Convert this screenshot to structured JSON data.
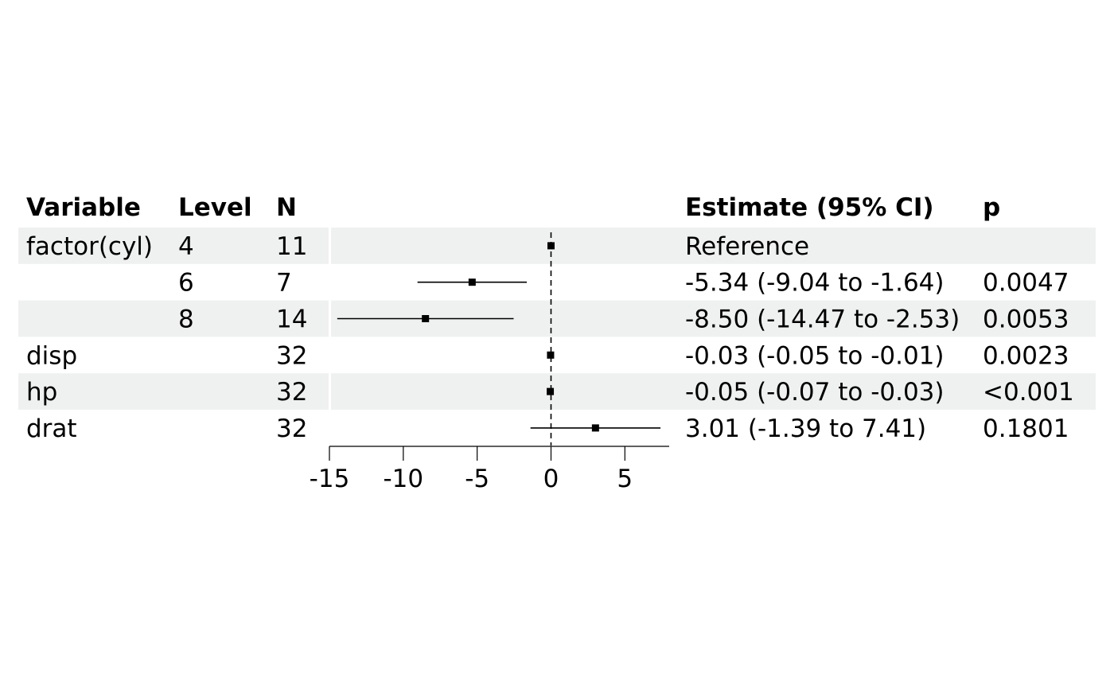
{
  "chart_data": {
    "type": "forest",
    "headers": {
      "variable": "Variable",
      "level": "Level",
      "n": "N",
      "estimate": "Estimate (95% CI)",
      "p": "p"
    },
    "rows": [
      {
        "variable": "factor(cyl)",
        "level": "4",
        "n": "11",
        "estimate_text": "Reference",
        "p_text": "",
        "estimate": 0,
        "lower": null,
        "upper": null
      },
      {
        "variable": "",
        "level": "6",
        "n": "7",
        "estimate_text": "-5.34 (-9.04 to -1.64)",
        "p_text": "0.0047",
        "estimate": -5.34,
        "lower": -9.04,
        "upper": -1.64
      },
      {
        "variable": "",
        "level": "8",
        "n": "14",
        "estimate_text": "-8.50 (-14.47 to -2.53)",
        "p_text": "0.0053",
        "estimate": -8.5,
        "lower": -14.47,
        "upper": -2.53
      },
      {
        "variable": "disp",
        "level": "",
        "n": "32",
        "estimate_text": "-0.03 (-0.05 to -0.01)",
        "p_text": "0.0023",
        "estimate": -0.03,
        "lower": -0.05,
        "upper": -0.01
      },
      {
        "variable": "hp",
        "level": "",
        "n": "32",
        "estimate_text": "-0.05 (-0.07 to -0.03)",
        "p_text": "<0.001",
        "estimate": -0.05,
        "lower": -0.07,
        "upper": -0.03
      },
      {
        "variable": "drat",
        "level": "",
        "n": "32",
        "estimate_text": "3.01 (-1.39 to 7.41)",
        "p_text": "0.1801",
        "estimate": 3.01,
        "lower": -1.39,
        "upper": 7.41
      }
    ],
    "x_ticks": [
      -15,
      -10,
      -5,
      0,
      5
    ],
    "x_tick_labels": [
      "-15",
      "-10",
      "-5",
      "0",
      "5"
    ],
    "xlim": [
      -15,
      8
    ],
    "reference_line": 0,
    "stripe_color": "#eff1f0",
    "mark_color": "#000000"
  }
}
